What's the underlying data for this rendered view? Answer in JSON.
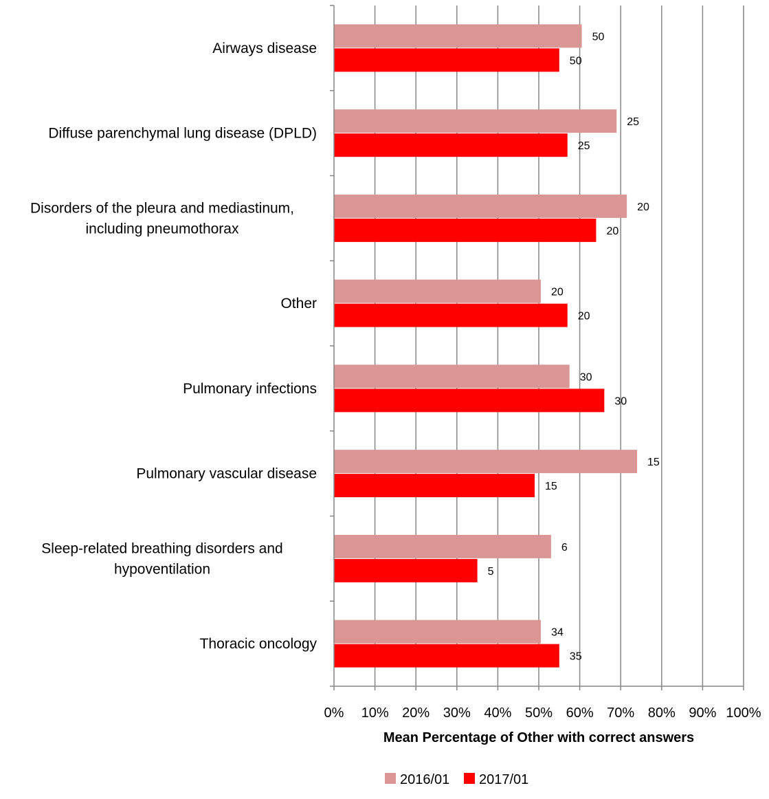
{
  "chart_data": {
    "type": "bar",
    "orientation": "horizontal",
    "categories": [
      [
        "Airways disease"
      ],
      [
        "Diffuse parenchymal lung disease (DPLD)"
      ],
      [
        "Disorders of the pleura and mediastinum,",
        "including pneumothorax"
      ],
      [
        "Other"
      ],
      [
        "Pulmonary infections"
      ],
      [
        "Pulmonary vascular disease"
      ],
      [
        "Sleep-related breathing disorders and",
        "hypoventilation"
      ],
      [
        "Thoracic oncology"
      ]
    ],
    "series": [
      {
        "name": "2016/01",
        "color": "#d99694",
        "values": [
          60.5,
          69,
          71.5,
          50.5,
          57.5,
          74,
          53,
          50.5
        ],
        "labels": [
          "50",
          "25",
          "20",
          "20",
          "30",
          "15",
          "6",
          "34"
        ]
      },
      {
        "name": "2017/01",
        "color": "#ff0000",
        "values": [
          55,
          57,
          64,
          57,
          66,
          49,
          35,
          55
        ],
        "labels": [
          "50",
          "25",
          "20",
          "20",
          "30",
          "15",
          "5",
          "35"
        ]
      }
    ],
    "xlim": [
      0,
      100
    ],
    "x_ticks": [
      "0%",
      "10%",
      "20%",
      "30%",
      "40%",
      "50%",
      "60%",
      "70%",
      "80%",
      "90%",
      "100%"
    ],
    "xlabel": "Mean Percentage of Other with correct answers",
    "ylabel": "",
    "title": "",
    "grid": "vertical",
    "legend_position": "bottom"
  }
}
